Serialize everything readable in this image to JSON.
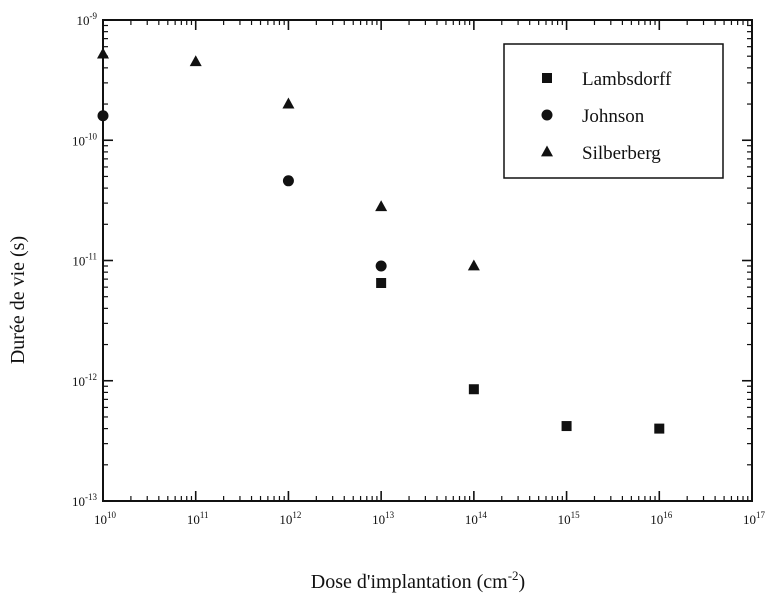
{
  "chart_data": {
    "type": "scatter",
    "x_scale": "log",
    "y_scale": "log",
    "xlim": [
      10000000000.0,
      1e+17
    ],
    "ylim": [
      1e-13,
      1e-09
    ],
    "xlabel": "Dose d'implantation (cm-2)",
    "ylabel": "Durée de vie (s)",
    "x_ticks": [
      10000000000.0,
      100000000000.0,
      1000000000000.0,
      10000000000000.0,
      100000000000000.0,
      1000000000000000.0,
      1e+16,
      1e+17
    ],
    "x_tick_labels": [
      {
        "base": "10",
        "exp": "10"
      },
      {
        "base": "10",
        "exp": "11"
      },
      {
        "base": "10",
        "exp": "12"
      },
      {
        "base": "10",
        "exp": "13"
      },
      {
        "base": "10",
        "exp": "14"
      },
      {
        "base": "10",
        "exp": "15"
      },
      {
        "base": "10",
        "exp": "16"
      },
      {
        "base": "10",
        "exp": "17"
      }
    ],
    "y_ticks": [
      1e-13,
      1e-12,
      1e-11,
      1e-10,
      1e-09
    ],
    "y_tick_labels": [
      {
        "base": "10",
        "exp": "-13"
      },
      {
        "base": "10",
        "exp": "-12"
      },
      {
        "base": "10",
        "exp": "-11"
      },
      {
        "base": "10",
        "exp": "-10"
      },
      {
        "base": "10",
        "exp": "-9"
      }
    ],
    "grid": false,
    "legend_position": "top-right",
    "series": [
      {
        "name": "Lambsdorff",
        "marker": "square",
        "color": "#111111",
        "points": [
          {
            "x": 10000000000000.0,
            "y": 6.5e-12
          },
          {
            "x": 100000000000000.0,
            "y": 8.5e-13
          },
          {
            "x": 1000000000000000.0,
            "y": 4.2e-13
          },
          {
            "x": 1e+16,
            "y": 4e-13
          }
        ]
      },
      {
        "name": "Johnson",
        "marker": "circle",
        "color": "#111111",
        "points": [
          {
            "x": 10000000000.0,
            "y": 1.6e-10
          },
          {
            "x": 1000000000000.0,
            "y": 4.6e-11
          },
          {
            "x": 10000000000000.0,
            "y": 9e-12
          }
        ]
      },
      {
        "name": "Silberberg",
        "marker": "triangle",
        "color": "#111111",
        "points": [
          {
            "x": 10000000000.0,
            "y": 5.2e-10
          },
          {
            "x": 100000000000.0,
            "y": 4.5e-10
          },
          {
            "x": 1000000000000.0,
            "y": 2e-10
          },
          {
            "x": 10000000000000.0,
            "y": 2.8e-11
          },
          {
            "x": 100000000000000.0,
            "y": 9e-12
          }
        ]
      }
    ]
  }
}
